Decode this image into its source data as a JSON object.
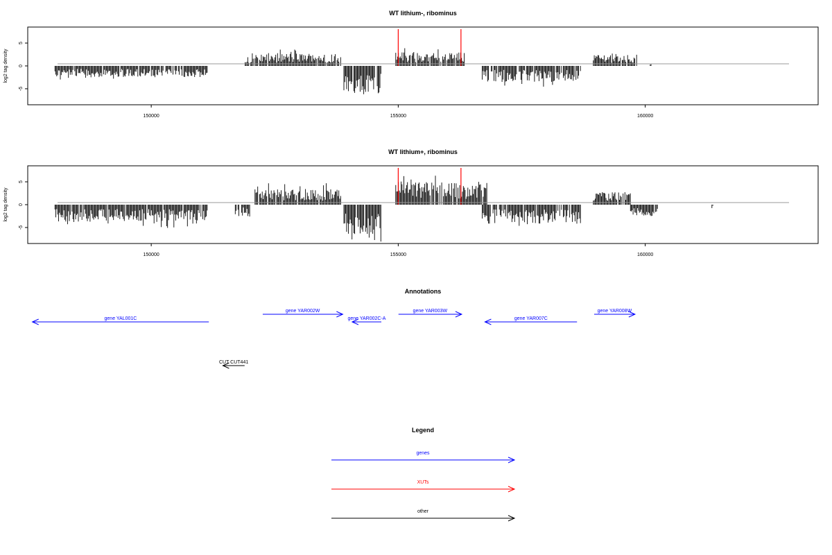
{
  "panels": [
    {
      "title": "WT lithium-, ribominus",
      "ylabel": "log2 tag density"
    },
    {
      "title": "WT lithium+, ribominus",
      "ylabel": "log2 tag density"
    }
  ],
  "annotations_title": "Annotations",
  "legend_title": "Legend",
  "colors": {
    "gene": "#0000ff",
    "xut": "#ff0000",
    "other": "#000000",
    "baseline": "#999999",
    "bars": "#000000"
  },
  "annotations": [
    {
      "label": "gene YAL001C",
      "start": 147594,
      "end": 151166,
      "strand": "-",
      "kind": "gene"
    },
    {
      "label": "gene YAR002W",
      "start": 152257,
      "end": 153877,
      "strand": "+",
      "kind": "gene"
    },
    {
      "label": "gene YAR002C-A",
      "start": 154067,
      "end": 154658,
      "strand": "-",
      "kind": "gene"
    },
    {
      "label": "gene YAR003W",
      "start": 155005,
      "end": 156285,
      "strand": "+",
      "kind": "gene"
    },
    {
      "label": "gene YAR007C",
      "start": 156755,
      "end": 158619,
      "strand": "-",
      "kind": "gene"
    },
    {
      "label": "gene YAR008W",
      "start": 158966,
      "end": 159793,
      "strand": "+",
      "kind": "gene"
    },
    {
      "label": "CUT CUT441",
      "start": 151450,
      "end": 151890,
      "strand": "-",
      "kind": "other"
    }
  ],
  "legend": [
    {
      "label": "genes",
      "kind": "gene"
    },
    {
      "label": "XUTs",
      "kind": "xut"
    },
    {
      "label": "other",
      "kind": "other"
    }
  ],
  "chart_data": [
    {
      "type": "bar",
      "title": "WT lithium-, ribominus",
      "xlabel": "",
      "ylabel": "log2 tag density",
      "xlim": [
        147500,
        163500
      ],
      "ylim": [
        -8.5,
        8.5
      ],
      "x_ticks": [
        150000,
        155000,
        160000
      ],
      "y_ticks": [
        -5,
        0,
        5
      ],
      "red_markers": [
        155000,
        156270
      ],
      "segments": [
        {
          "start": 148050,
          "end": 151150,
          "sign": -1,
          "amp": 2.5
        },
        {
          "start": 151900,
          "end": 153850,
          "sign": 1,
          "amp": 2.8
        },
        {
          "start": 153900,
          "end": 154650,
          "sign": -1,
          "amp": 6
        },
        {
          "start": 154950,
          "end": 156350,
          "sign": 1,
          "amp": 3
        },
        {
          "start": 156700,
          "end": 158700,
          "sign": -1,
          "amp": 3.5
        },
        {
          "start": 158950,
          "end": 159850,
          "sign": 1,
          "amp": 2.7
        },
        {
          "start": 160100,
          "end": 160120,
          "sign": 1,
          "amp": 0.8
        }
      ],
      "grid": false
    },
    {
      "type": "bar",
      "title": "WT lithium+, ribominus",
      "xlabel": "",
      "ylabel": "log2 tag density",
      "xlim": [
        147500,
        163500
      ],
      "ylim": [
        -8.5,
        8.5
      ],
      "x_ticks": [
        150000,
        155000,
        160000
      ],
      "y_ticks": [
        -5,
        0,
        5
      ],
      "red_markers": [
        155000,
        156270
      ],
      "segments": [
        {
          "start": 148050,
          "end": 151150,
          "sign": -1,
          "amp": 3.8
        },
        {
          "start": 151700,
          "end": 152000,
          "sign": -1,
          "amp": 2.5
        },
        {
          "start": 152100,
          "end": 153850,
          "sign": 1,
          "amp": 3.5
        },
        {
          "start": 153900,
          "end": 154650,
          "sign": -1,
          "amp": 6.5
        },
        {
          "start": 154950,
          "end": 156800,
          "sign": 1,
          "amp": 5
        },
        {
          "start": 156700,
          "end": 158700,
          "sign": -1,
          "amp": 4.2
        },
        {
          "start": 158950,
          "end": 159700,
          "sign": 1,
          "amp": 2.8
        },
        {
          "start": 159700,
          "end": 160250,
          "sign": -1,
          "amp": 2.5
        },
        {
          "start": 161350,
          "end": 161370,
          "sign": -1,
          "amp": 0.8
        }
      ],
      "grid": false
    }
  ]
}
